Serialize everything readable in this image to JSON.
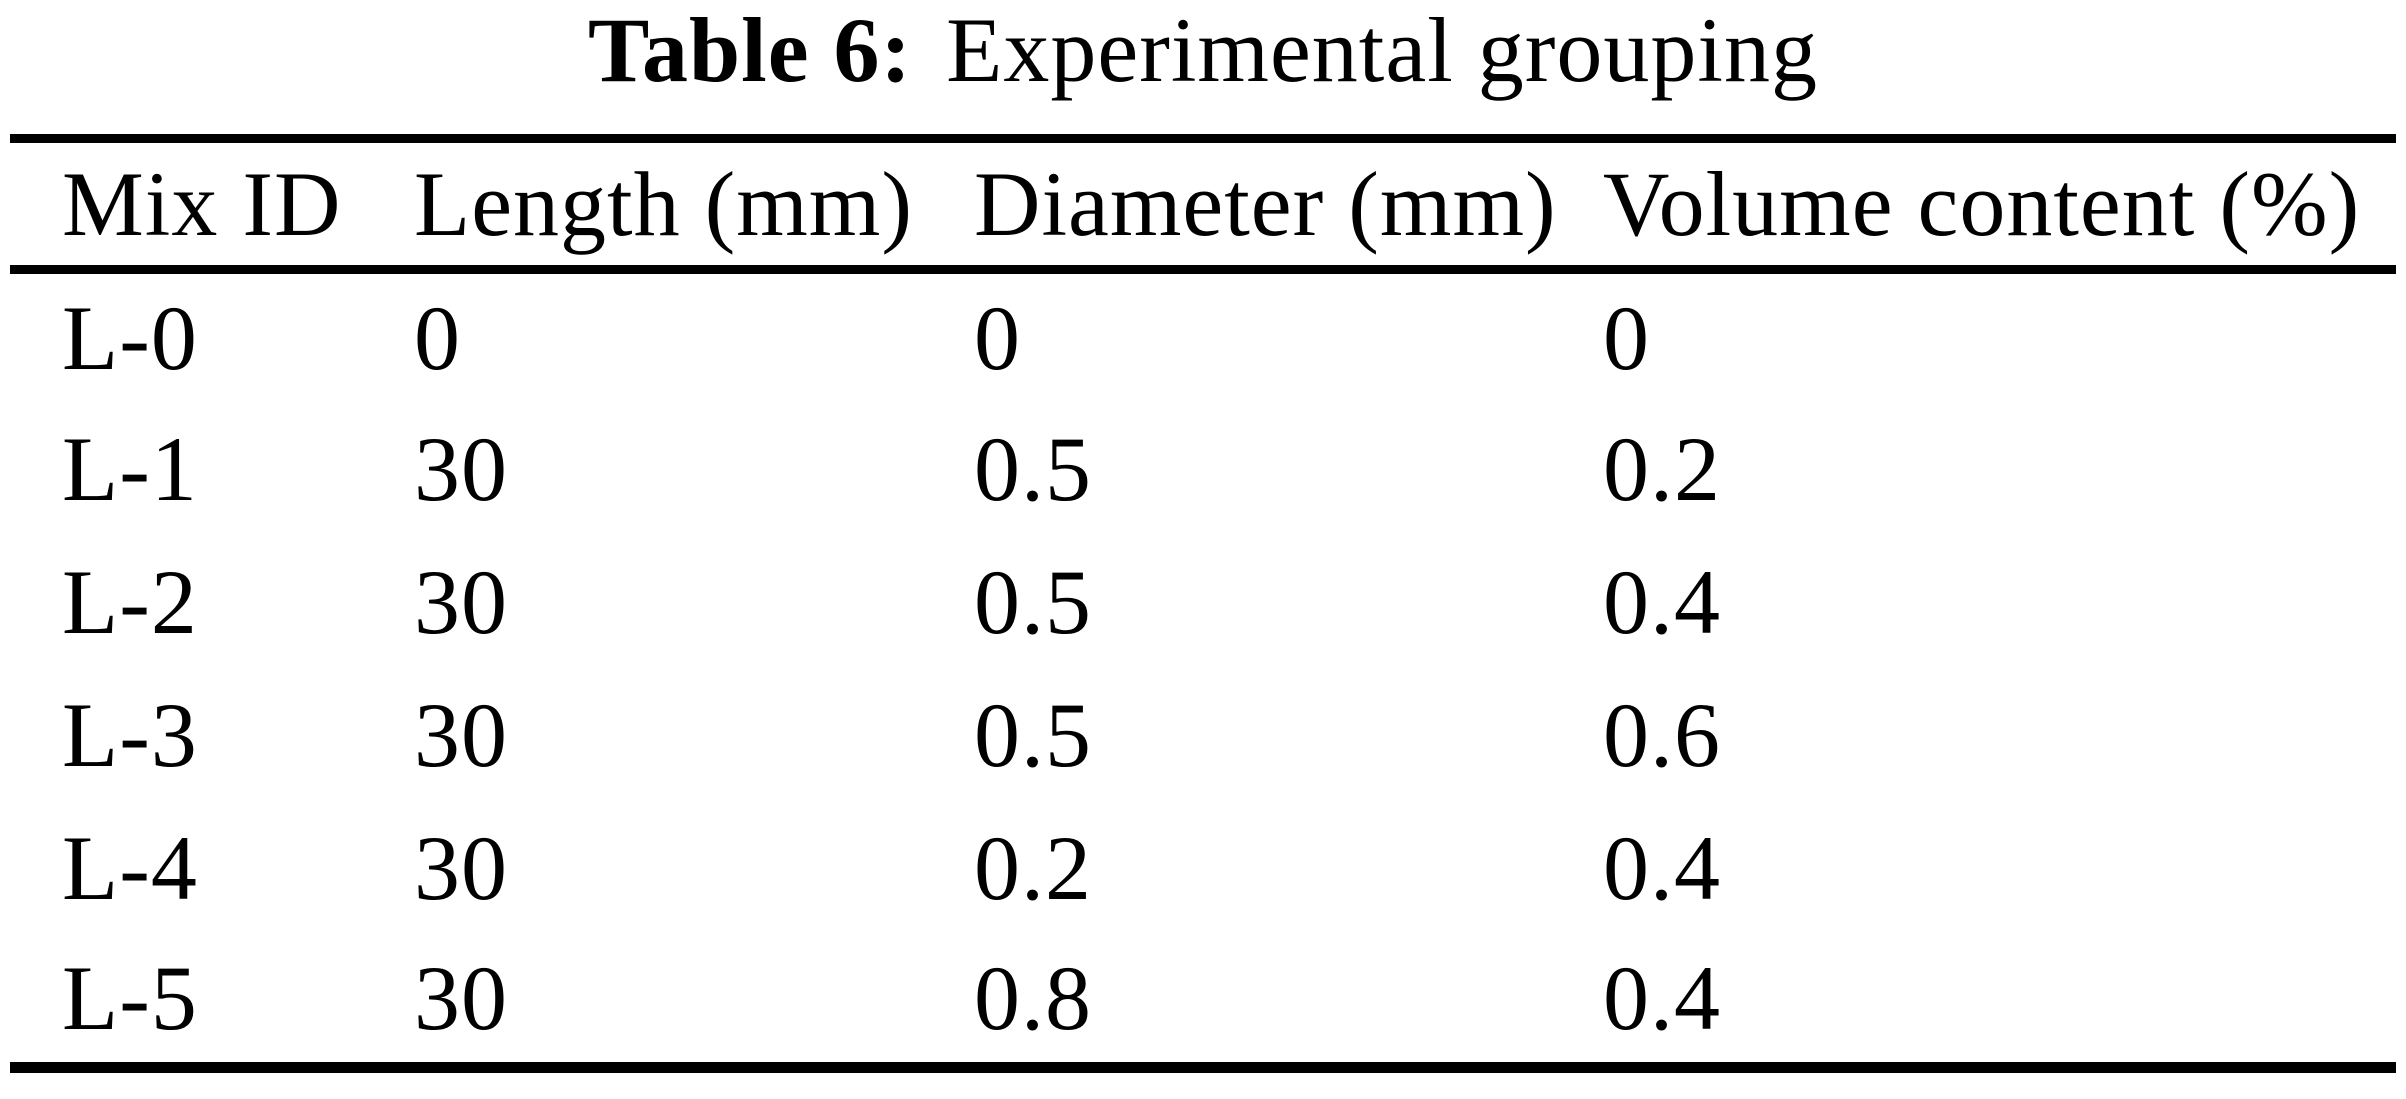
{
  "caption": {
    "label": "Table 6:",
    "text": "Experimental grouping"
  },
  "table": {
    "columns": [
      "Mix ID",
      "Length (mm)",
      "Diameter (mm)",
      "Volume content (%)"
    ],
    "rows": [
      [
        "L-0",
        "0",
        "0",
        "0"
      ],
      [
        "L-1",
        "30",
        "0.5",
        "0.2"
      ],
      [
        "L-2",
        "30",
        "0.5",
        "0.4"
      ],
      [
        "L-3",
        "30",
        "0.5",
        "0.6"
      ],
      [
        "L-4",
        "30",
        "0.2",
        "0.4"
      ],
      [
        "L-5",
        "30",
        "0.8",
        "0.4"
      ]
    ]
  },
  "colors": {
    "background": "#ffffff",
    "text": "#000000",
    "rule": "#000000"
  }
}
